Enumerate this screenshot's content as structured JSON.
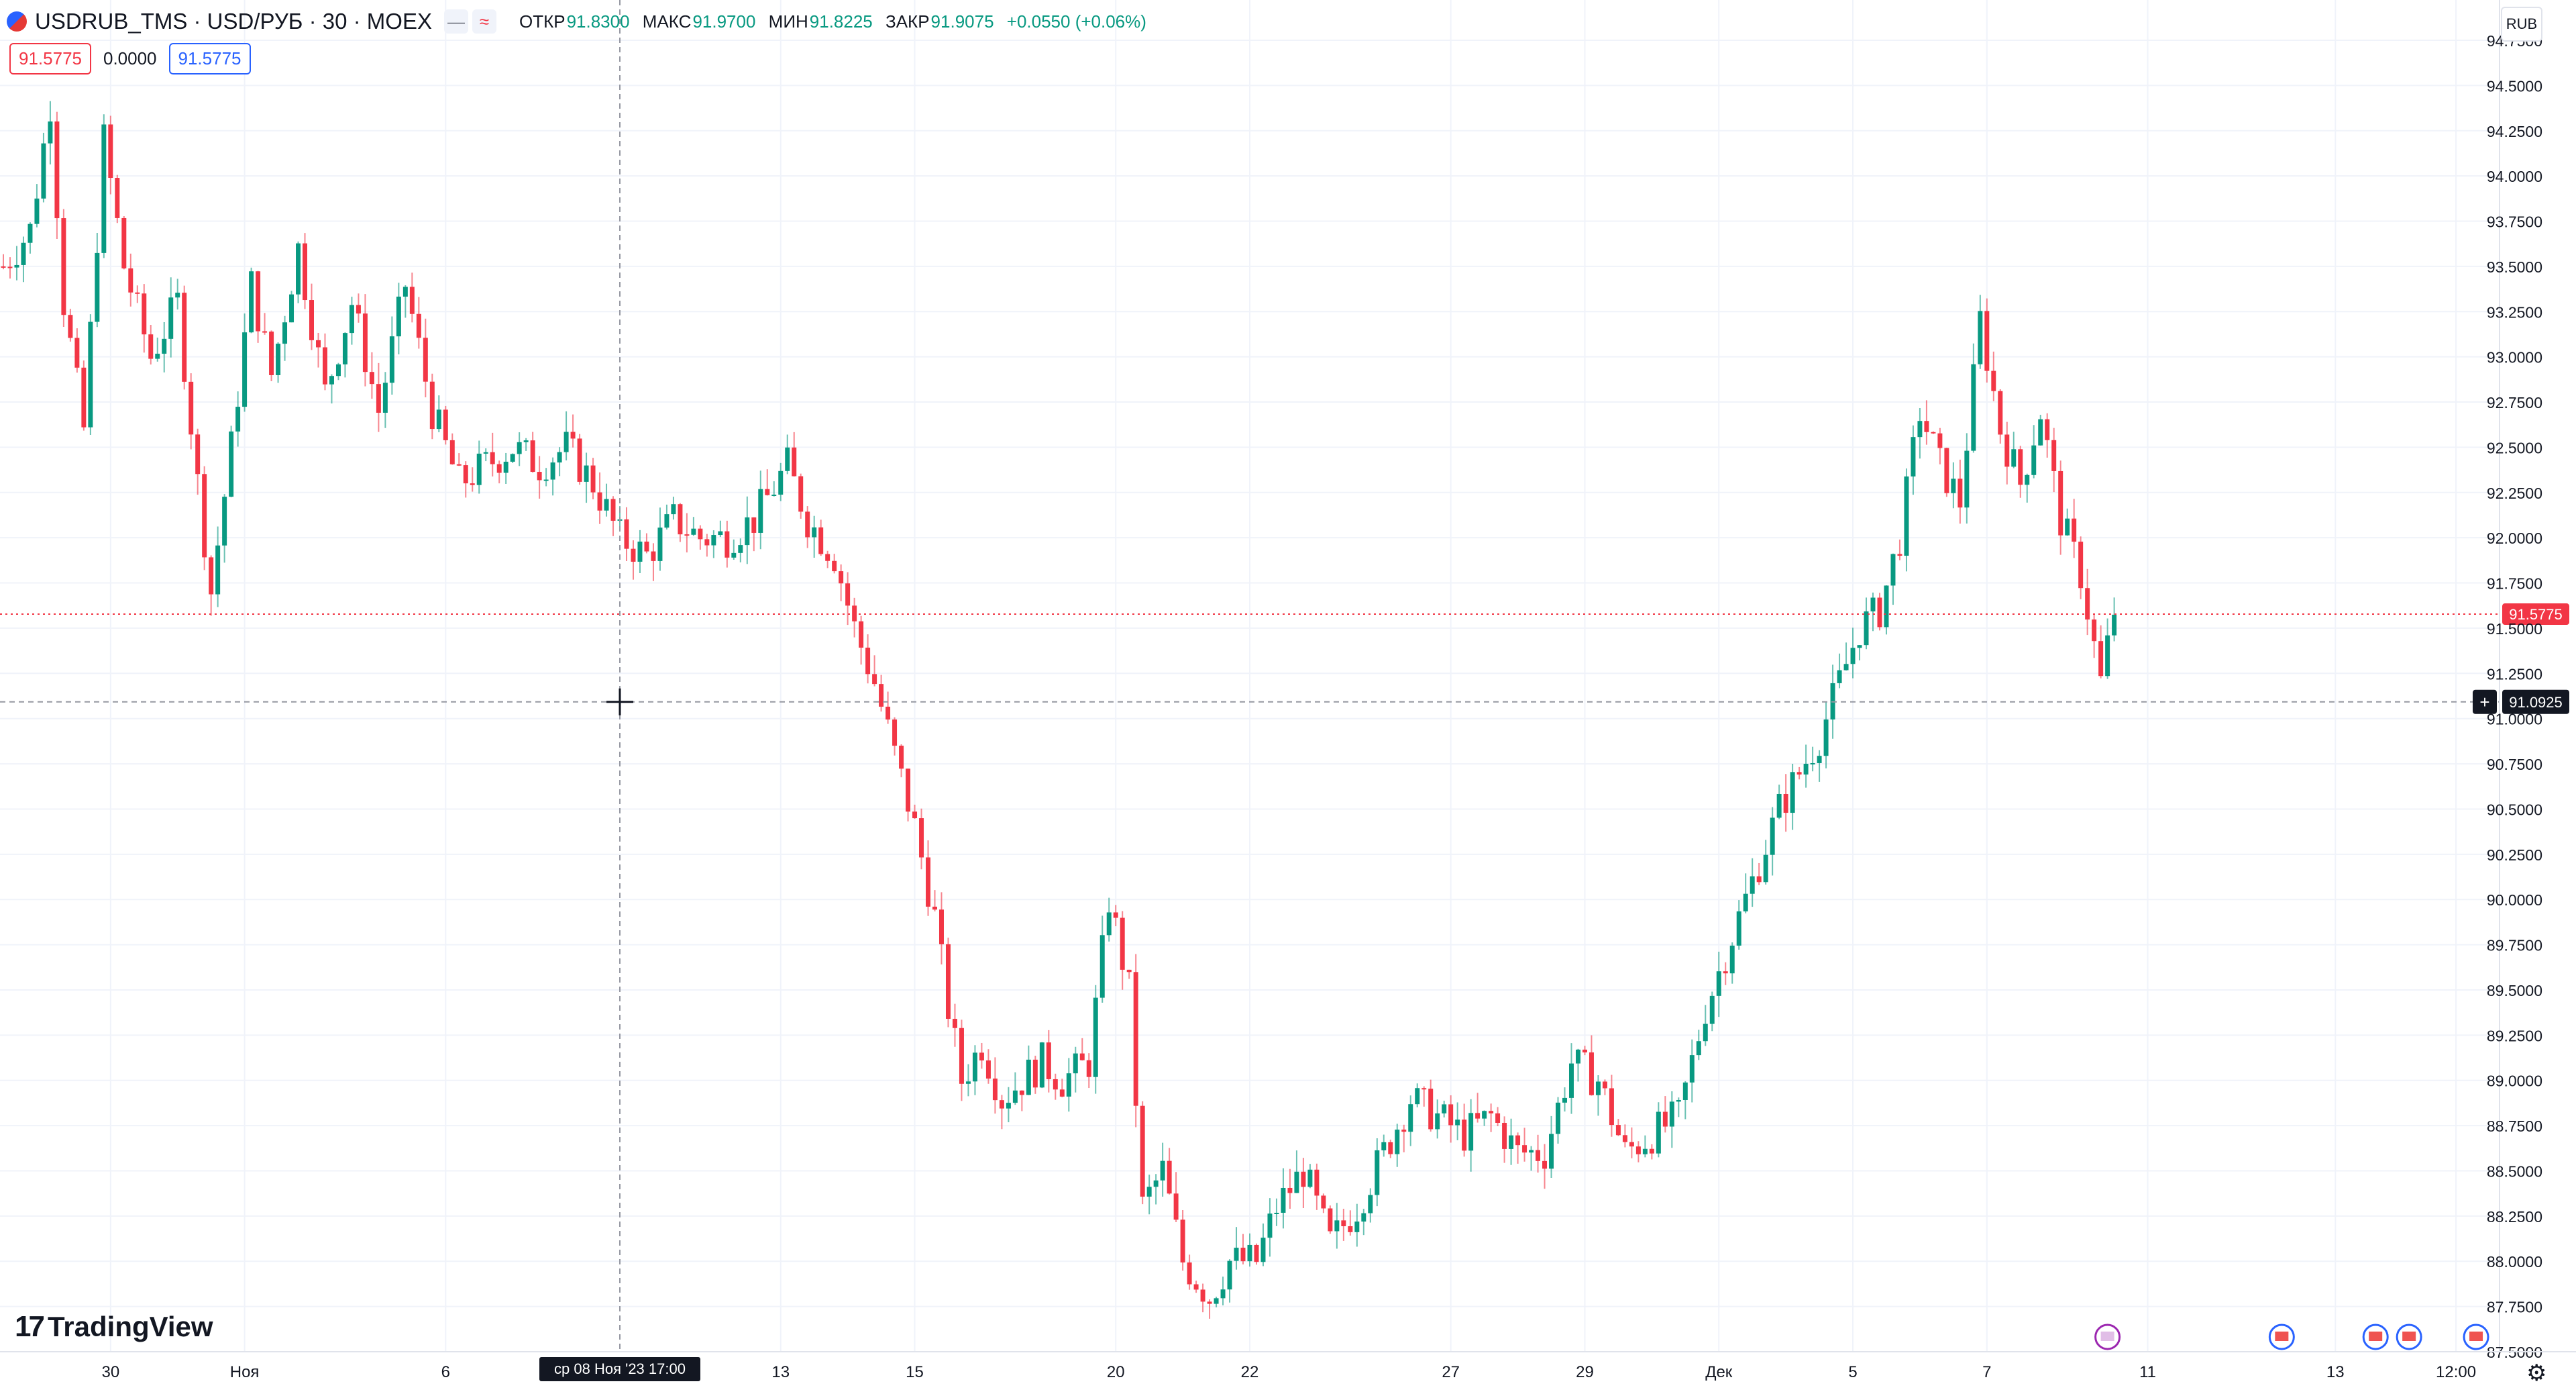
{
  "legend": {
    "symbol": "USDRUB_TMS · USD/РУБ · 30 · MOEX",
    "btn_hide": "—",
    "btn_compare": "≈",
    "open_label": "ОТКР",
    "open": "91.8300",
    "high_label": "МАКС",
    "high": "91.9700",
    "low_label": "МИН",
    "low": "91.8225",
    "close_label": "ЗАКР",
    "close": "91.9075",
    "change": "+0.0550 (+0.06%)",
    "bid": "91.5775",
    "spread": "0.0000",
    "ask": "91.5775"
  },
  "currency": "RUB",
  "logo": "TradingView",
  "logo_mark": "17",
  "settings_icon": "⚙",
  "crosshair": {
    "time_label": "ср 08 Ноя '23   17:00",
    "price_label": "91.0925",
    "price": 91.0925,
    "time_index": 92
  },
  "last_price": {
    "label": "91.5775",
    "value": 91.5775
  },
  "colors": {
    "up": "#089981",
    "down": "#f23645",
    "grid": "#f0f3fa",
    "axis_text": "#131722"
  },
  "chart_data": {
    "type": "candlestick",
    "title": "",
    "ylim": [
      87.5,
      94.75
    ],
    "y_ticks": [
      "87.5000",
      "87.7500",
      "88.0000",
      "88.2500",
      "88.5000",
      "88.7500",
      "89.0000",
      "89.2500",
      "89.5000",
      "89.7500",
      "90.0000",
      "90.2500",
      "90.5000",
      "90.7500",
      "91.0000",
      "91.2500",
      "91.5000",
      "91.7500",
      "92.0000",
      "92.2500",
      "92.5000",
      "92.7500",
      "93.0000",
      "93.2500",
      "93.5000",
      "93.7500",
      "94.0000",
      "94.2500",
      "94.5000",
      "94.7500"
    ],
    "x_ticks": [
      {
        "label": "30",
        "index": 16
      },
      {
        "label": "Ноя",
        "index": 36
      },
      {
        "label": "6",
        "index": 66
      },
      {
        "label": "13",
        "index": 116
      },
      {
        "label": "15",
        "index": 136
      },
      {
        "label": "20",
        "index": 166
      },
      {
        "label": "22",
        "index": 186
      },
      {
        "label": "27",
        "index": 216
      },
      {
        "label": "29",
        "index": 236
      },
      {
        "label": "Дек",
        "index": 256
      },
      {
        "label": "5",
        "index": 276
      },
      {
        "label": "7",
        "index": 296
      },
      {
        "label": "11",
        "index": 320
      },
      {
        "label": "13",
        "index": 348
      },
      {
        "label": "12:00",
        "index": 366
      }
    ],
    "n_slots": 373,
    "series_close": [
      [
        0,
        93.5
      ],
      [
        4,
        93.7
      ],
      [
        7,
        94.4
      ],
      [
        9,
        93.3
      ],
      [
        12,
        92.6
      ],
      [
        15,
        94.2
      ],
      [
        18,
        93.5
      ],
      [
        22,
        93.0
      ],
      [
        26,
        93.3
      ],
      [
        29,
        92.3
      ],
      [
        31,
        91.7
      ],
      [
        34,
        92.5
      ],
      [
        37,
        93.4
      ],
      [
        40,
        92.9
      ],
      [
        44,
        93.6
      ],
      [
        48,
        92.8
      ],
      [
        52,
        93.3
      ],
      [
        56,
        92.7
      ],
      [
        60,
        93.4
      ],
      [
        64,
        92.7
      ],
      [
        68,
        92.3
      ],
      [
        72,
        92.4
      ],
      [
        76,
        92.5
      ],
      [
        80,
        92.4
      ],
      [
        84,
        92.5
      ],
      [
        88,
        92.3
      ],
      [
        92,
        92.0
      ],
      [
        96,
        91.9
      ],
      [
        100,
        92.1
      ],
      [
        104,
        92.0
      ],
      [
        108,
        92.0
      ],
      [
        112,
        92.1
      ],
      [
        117,
        92.4
      ],
      [
        120,
        92.1
      ],
      [
        124,
        91.9
      ],
      [
        127,
        91.5
      ],
      [
        130,
        91.2
      ],
      [
        133,
        90.8
      ],
      [
        136,
        90.4
      ],
      [
        139,
        89.9
      ],
      [
        141,
        89.4
      ],
      [
        143,
        89.0
      ],
      [
        146,
        89.2
      ],
      [
        149,
        88.9
      ],
      [
        152,
        89.0
      ],
      [
        155,
        89.1
      ],
      [
        158,
        89.0
      ],
      [
        162,
        89.1
      ],
      [
        165,
        90.0
      ],
      [
        168,
        89.5
      ],
      [
        170,
        88.3
      ],
      [
        173,
        88.5
      ],
      [
        176,
        88.0
      ],
      [
        180,
        87.8
      ],
      [
        183,
        88.0
      ],
      [
        187,
        88.0
      ],
      [
        190,
        88.3
      ],
      [
        194,
        88.5
      ],
      [
        198,
        88.1
      ],
      [
        202,
        88.3
      ],
      [
        206,
        88.6
      ],
      [
        210,
        88.9
      ],
      [
        214,
        88.8
      ],
      [
        218,
        88.7
      ],
      [
        222,
        88.8
      ],
      [
        226,
        88.6
      ],
      [
        230,
        88.6
      ],
      [
        234,
        89.1
      ],
      [
        238,
        89.0
      ],
      [
        242,
        88.6
      ],
      [
        246,
        88.7
      ],
      [
        250,
        88.8
      ],
      [
        254,
        89.4
      ],
      [
        258,
        89.8
      ],
      [
        262,
        90.2
      ],
      [
        265,
        90.5
      ],
      [
        268,
        90.7
      ],
      [
        271,
        90.9
      ],
      [
        274,
        91.2
      ],
      [
        277,
        91.5
      ],
      [
        280,
        91.6
      ],
      [
        283,
        92.0
      ],
      [
        286,
        92.7
      ],
      [
        289,
        92.4
      ],
      [
        292,
        92.2
      ],
      [
        295,
        93.2
      ],
      [
        298,
        92.6
      ],
      [
        301,
        92.3
      ],
      [
        304,
        92.7
      ],
      [
        307,
        92.1
      ],
      [
        310,
        91.8
      ],
      [
        313,
        91.2
      ],
      [
        315,
        91.6
      ]
    ]
  }
}
